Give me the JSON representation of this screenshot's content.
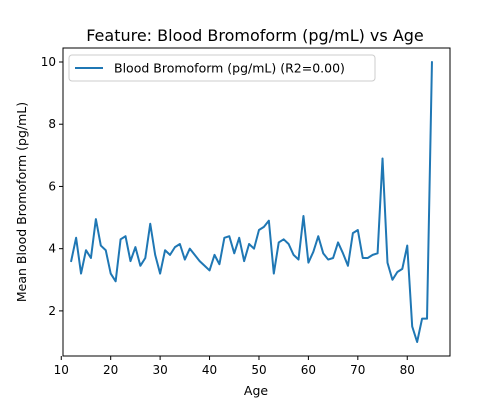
{
  "chart_data": {
    "type": "line",
    "title": "Feature: Blood Bromoform (pg/mL) vs Age",
    "xlabel": "Age",
    "ylabel": "Mean Blood Bromoform (pg/mL)",
    "xlim": [
      10.35,
      88.65
    ],
    "ylim": [
      0.55,
      10.45
    ],
    "xticks": [
      10,
      20,
      30,
      40,
      50,
      60,
      70,
      80
    ],
    "yticks": [
      2,
      4,
      6,
      8,
      10
    ],
    "grid": false,
    "legend_position": "top-left",
    "series": [
      {
        "name": "Blood Bromoform (pg/mL) (R2=0.00)",
        "color": "#1f77b4",
        "x": [
          12,
          13,
          14,
          15,
          16,
          17,
          18,
          19,
          20,
          21,
          22,
          23,
          24,
          25,
          26,
          27,
          28,
          29,
          30,
          31,
          32,
          33,
          34,
          35,
          36,
          37,
          38,
          39,
          40,
          41,
          42,
          43,
          44,
          45,
          46,
          47,
          48,
          49,
          50,
          51,
          52,
          53,
          54,
          55,
          56,
          57,
          58,
          59,
          60,
          61,
          62,
          63,
          64,
          65,
          66,
          67,
          68,
          69,
          70,
          71,
          72,
          73,
          74,
          75,
          76,
          77,
          78,
          79,
          80,
          81,
          82,
          83,
          84,
          85
        ],
        "y": [
          3.6,
          4.35,
          3.2,
          3.95,
          3.7,
          4.95,
          4.1,
          3.95,
          3.2,
          2.95,
          4.3,
          4.4,
          3.6,
          4.05,
          3.45,
          3.7,
          4.8,
          3.8,
          3.2,
          3.95,
          3.8,
          4.05,
          4.15,
          3.65,
          4.0,
          3.8,
          3.6,
          3.45,
          3.3,
          3.8,
          3.5,
          4.35,
          4.4,
          3.85,
          4.35,
          3.6,
          4.15,
          4.0,
          4.6,
          4.7,
          4.9,
          3.2,
          4.2,
          4.3,
          4.15,
          3.8,
          3.65,
          5.05,
          3.55,
          3.9,
          4.4,
          3.85,
          3.65,
          3.7,
          4.2,
          3.85,
          3.45,
          4.5,
          4.6,
          3.7,
          3.7,
          3.8,
          3.85,
          6.9,
          3.55,
          3.0,
          3.25,
          3.35,
          4.1,
          1.5,
          1.0,
          1.75,
          1.75,
          10.0
        ]
      }
    ]
  }
}
